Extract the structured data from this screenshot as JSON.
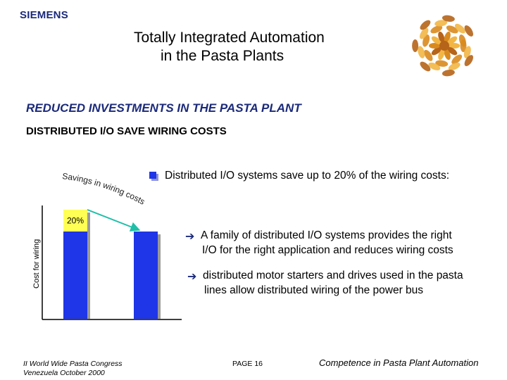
{
  "header": {
    "brand": "SIEMENS",
    "title_line1": "Totally Integrated Automation",
    "title_line2": "in the Pasta Plants"
  },
  "logo": {
    "icon": "pasta-fusilli-icon",
    "colors": [
      "#d98a1e",
      "#f2b645",
      "#b5641a"
    ]
  },
  "content": {
    "heading": "REDUCED  INVESTMENTS IN THE PASTA PLANT",
    "subheading": "DISTRIBUTED I/O SAVE WIRING COSTS",
    "main_point": "Distributed I/O systems save up to 20% of the wiring costs:",
    "items": [
      {
        "icon": "arrow-right-icon",
        "line1": "A family of distributed I/O systems provides the right",
        "line2": "I/O for the right application and reduces wiring costs"
      },
      {
        "icon": "arrow-right-icon",
        "line1": "distributed motor starters and drives used in the pasta",
        "line2": "lines allow distributed wiring of the power bus"
      }
    ]
  },
  "chart_data": {
    "type": "bar",
    "categories": [
      "",
      ""
    ],
    "values": [
      100,
      80
    ],
    "ylabel": "Cost for wiring",
    "annotation_arc": "Savings in wiring costs",
    "savings_label": "20%",
    "colors": {
      "bar": "#1f35e8",
      "bar_shadow": "#9a9a9a",
      "savings": "#ffff55",
      "arrow": "#1fbfa8"
    }
  },
  "footer": {
    "left_line1": "II World Wide Pasta Congress",
    "left_line2": "Venezuela October 2000",
    "page": "PAGE  16",
    "right": "Competence in Pasta Plant Automation"
  }
}
